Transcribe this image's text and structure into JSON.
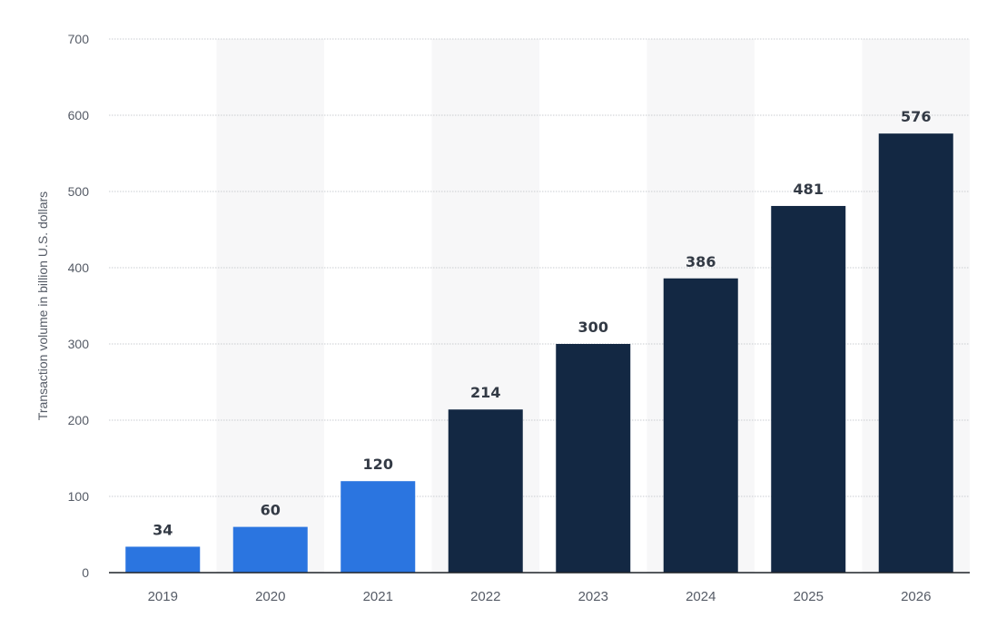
{
  "chart_data": {
    "type": "bar",
    "categories": [
      "2019",
      "2020",
      "2021",
      "2022",
      "2023",
      "2024",
      "2025",
      "2026"
    ],
    "values": [
      34,
      60,
      120,
      214,
      300,
      386,
      481,
      576
    ],
    "data_labels": [
      "34",
      "60",
      "120",
      "214",
      "300",
      "386",
      "481",
      "576"
    ],
    "bar_colors": [
      "#2b75e0",
      "#2b75e0",
      "#2b75e0",
      "#132843",
      "#132843",
      "#132843",
      "#132843",
      "#132843"
    ],
    "title": "",
    "xlabel": "",
    "ylabel": "Transaction volume in billion U.S. dollars",
    "ylim": [
      0,
      700
    ],
    "yticks": [
      "0",
      "100",
      "200",
      "300",
      "400",
      "500",
      "600",
      "700"
    ],
    "grid": true,
    "alternating_band_color": "#f7f7f8"
  }
}
